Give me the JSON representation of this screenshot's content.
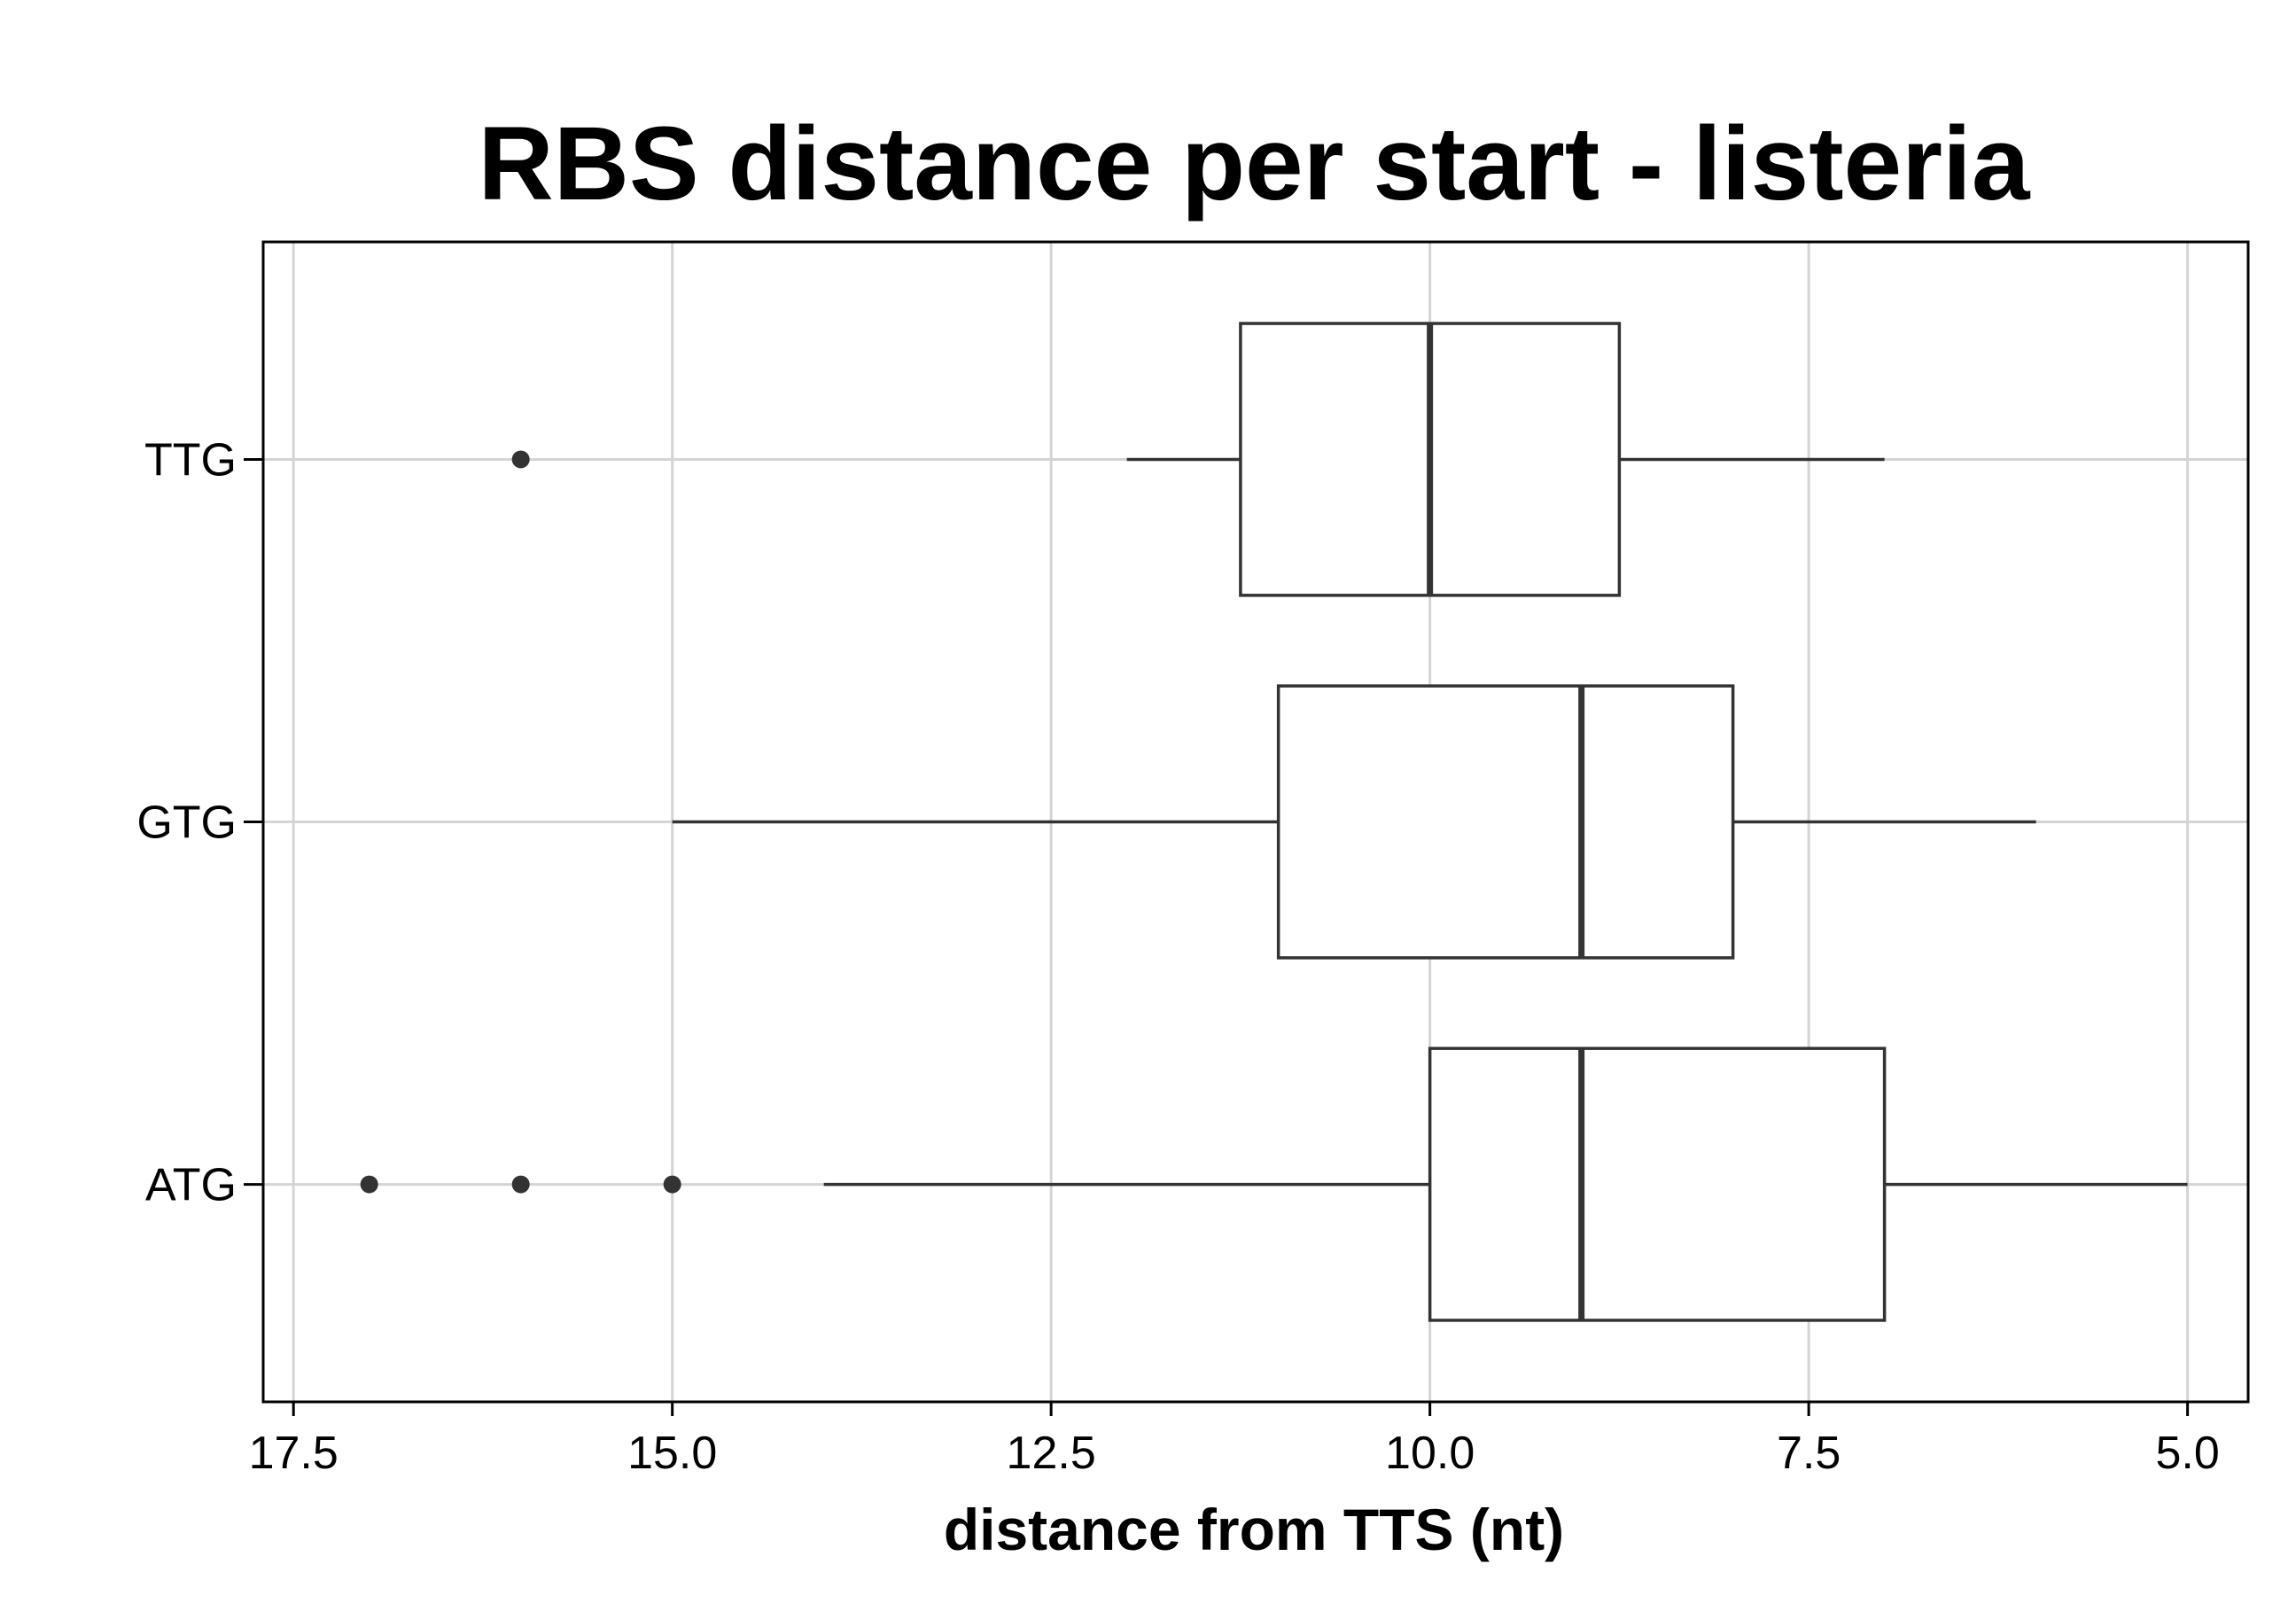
{
  "chart_data": {
    "type": "boxplot",
    "orientation": "horizontal",
    "title": "RBS distance per start - listeria",
    "xlabel": "distance from TTS (nt)",
    "ylabel": "",
    "x_reversed": true,
    "xlim": [
      17.7,
      4.6
    ],
    "x_ticks": [
      17.5,
      15.0,
      12.5,
      10.0,
      7.5,
      5.0
    ],
    "x_tick_labels": [
      "17.5",
      "15.0",
      "12.5",
      "10.0",
      "7.5",
      "5.0"
    ],
    "categories": [
      "TTG",
      "GTG",
      "ATG"
    ],
    "grid": true,
    "boxes": [
      {
        "category": "TTG",
        "whisker_low": 7,
        "q1": 8.75,
        "median": 10,
        "q3": 11.25,
        "whisker_high": 12,
        "outliers": [
          16
        ]
      },
      {
        "category": "GTG",
        "whisker_low": 6,
        "q1": 8,
        "median": 9,
        "q3": 11,
        "whisker_high": 15,
        "outliers": []
      },
      {
        "category": "ATG",
        "whisker_low": 5,
        "q1": 7,
        "median": 9,
        "q3": 10,
        "whisker_high": 14,
        "outliers": [
          15,
          16,
          17
        ]
      }
    ],
    "colors": {
      "box_stroke": "#333333",
      "grid": "#d4d4d4",
      "frame": "#000000",
      "point": "#333333"
    }
  }
}
